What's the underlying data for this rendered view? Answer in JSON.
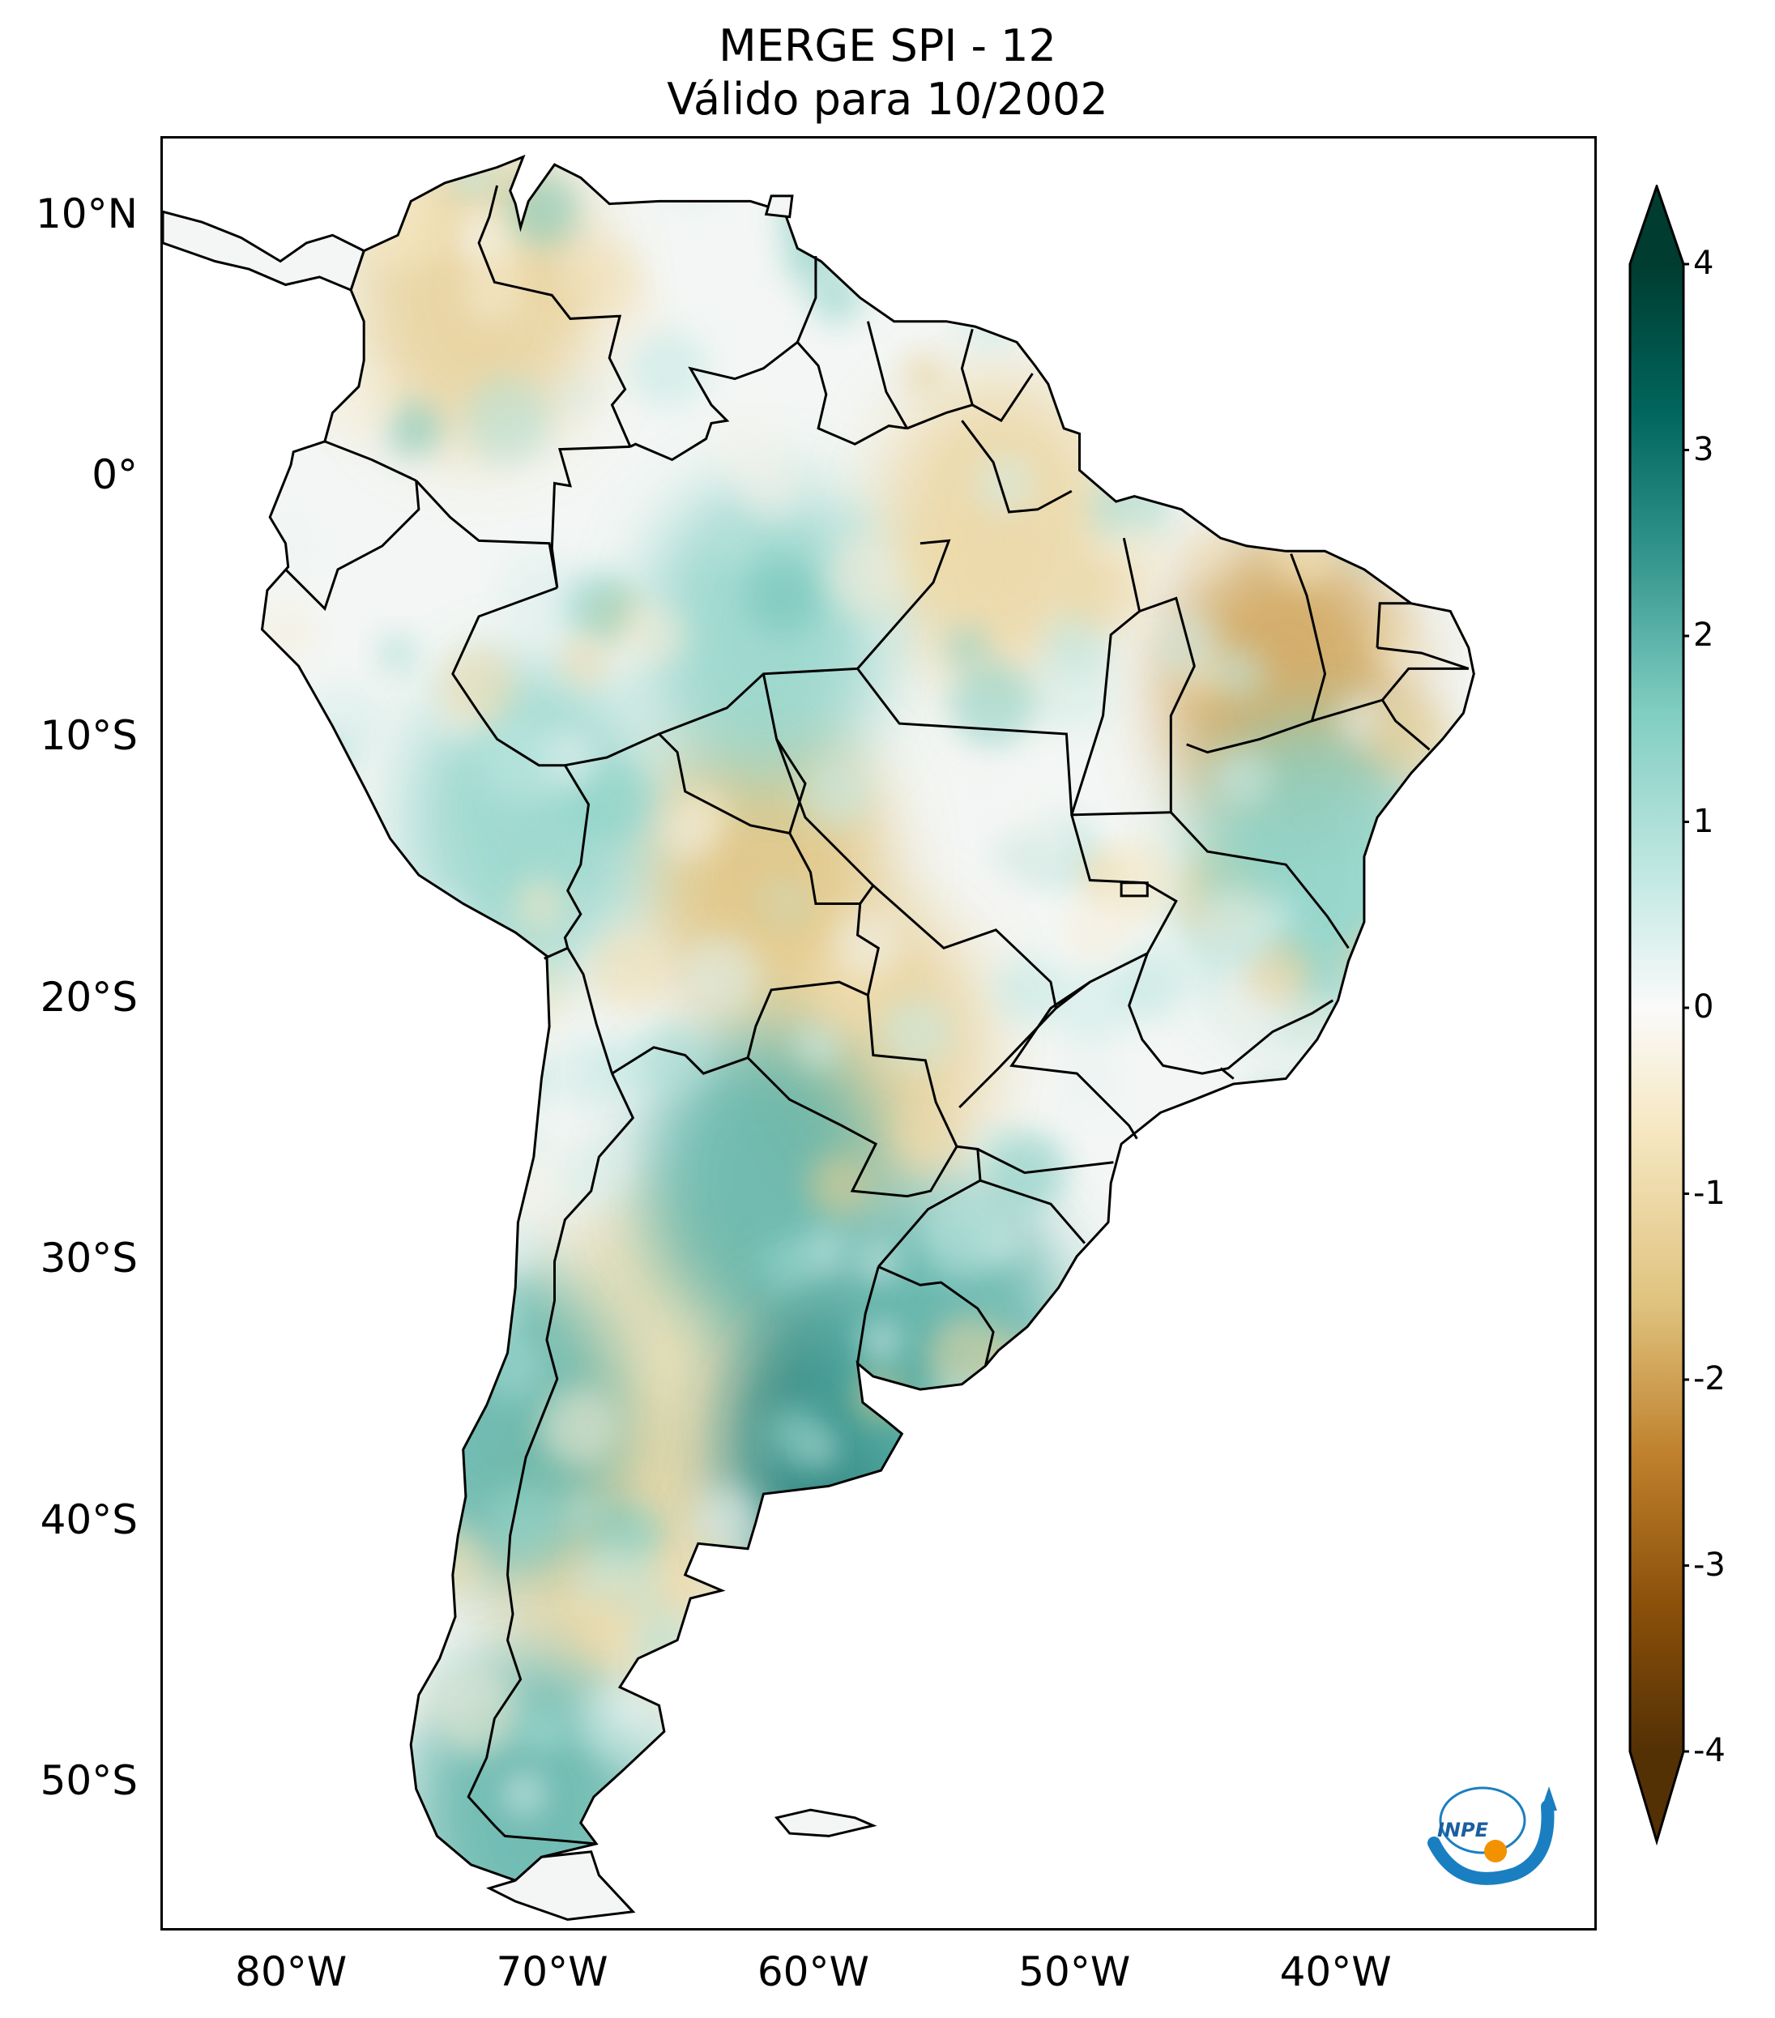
{
  "title": {
    "line1": "MERGE   SPI - 12",
    "line2": "Válido para 10/2002"
  },
  "axes": {
    "lat_ticks": [
      "10°N",
      "0°",
      "10°S",
      "20°S",
      "30°S",
      "40°S",
      "50°S"
    ],
    "lat_values": [
      10,
      0,
      -10,
      -20,
      -30,
      -40,
      -50
    ],
    "lon_ticks": [
      "80°W",
      "70°W",
      "60°W",
      "50°W",
      "40°W"
    ],
    "lon_values": [
      -80,
      -70,
      -60,
      -50,
      -40
    ],
    "lon_range": [
      -85,
      -30
    ],
    "lat_range": [
      -56,
      13
    ]
  },
  "colorbar": {
    "ticks": [
      "4",
      "3",
      "2",
      "1",
      "0",
      "-1",
      "-2",
      "-3",
      "-4"
    ],
    "values": [
      4,
      3,
      2,
      1,
      0,
      -1,
      -2,
      -3,
      -4
    ],
    "range": [
      -4,
      4
    ],
    "extend": "both",
    "colormap": "BrBG",
    "stops": [
      "#543005",
      "#8c510a",
      "#bf812d",
      "#dfc27d",
      "#f6e8c3",
      "#f5f5f5",
      "#c7eae5",
      "#80cdc1",
      "#35978f",
      "#01665e",
      "#003c30"
    ]
  },
  "map_features": {
    "dry_regions": [
      {
        "name": "colombia-venezuela",
        "lon": -73,
        "lat": 7,
        "spi": -1.3
      },
      {
        "name": "bolivia-mato-grosso",
        "lon": -62,
        "lat": -15,
        "spi": -1.6
      },
      {
        "name": "para-amapa",
        "lon": -53,
        "lat": -2,
        "spi": -1.2
      },
      {
        "name": "piaui",
        "lon": -42,
        "lat": -8,
        "spi": -2.0
      },
      {
        "name": "paraguay",
        "lon": -58,
        "lat": -22,
        "spi": -1.3
      },
      {
        "name": "central-argentina",
        "lon": -66,
        "lat": -33,
        "spi": -1.0
      },
      {
        "name": "patagonia",
        "lon": -68,
        "lat": -41,
        "spi": -1.2
      }
    ],
    "wet_regions": [
      {
        "name": "northern-argentina",
        "lon": -62,
        "lat": -27,
        "spi": 2.0
      },
      {
        "name": "buenos-aires",
        "lon": -59,
        "lat": -37,
        "spi": 2.8
      },
      {
        "name": "uruguay",
        "lon": -55,
        "lat": -33,
        "spi": 2.0
      },
      {
        "name": "chile-south",
        "lon": -72,
        "lat": -36,
        "spi": 2.0
      },
      {
        "name": "patagonia-south",
        "lon": -71,
        "lat": -51,
        "spi": 2.0
      },
      {
        "name": "amazonas",
        "lon": -62,
        "lat": -6,
        "spi": 1.4
      },
      {
        "name": "bahia-mg",
        "lon": -41,
        "lat": -15,
        "spi": 1.5
      },
      {
        "name": "peru-bolivia",
        "lon": -71,
        "lat": -13,
        "spi": 1.4
      }
    ]
  },
  "logo": {
    "text": "INPE"
  }
}
